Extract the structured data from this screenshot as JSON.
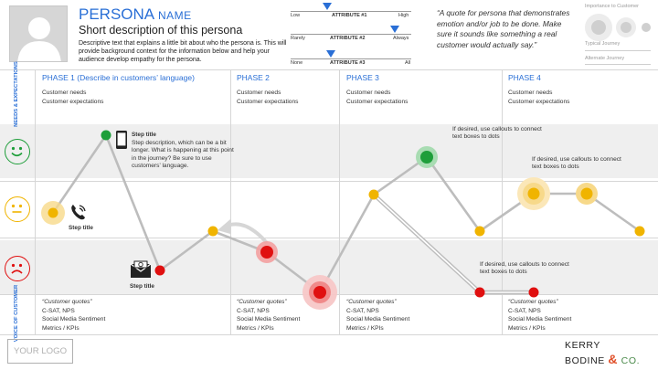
{
  "persona": {
    "title": "PERSONA",
    "title_suffix": "NAME",
    "subtitle": "Short description of this persona",
    "description": "Descriptive text that explains a little bit about who the persona is. This will provide background context for the information below and help your audience develop empathy for the persona."
  },
  "attributes": [
    {
      "name": "ATTRIBUTE #1",
      "low": "Low",
      "high": "High",
      "level": 0.3
    },
    {
      "name": "ATTRIBUTE #2",
      "low": "Rarely",
      "high": "Always",
      "level": 0.86
    },
    {
      "name": "ATTRIBUTE #3",
      "low": "None",
      "high": "All",
      "level": 0.33
    }
  ],
  "quote": "“A quote for persona that demonstrates emotion and/or job to be done. Make sure it sounds like something a real customer would actually say.”",
  "importance_legend": {
    "title": "Importance to Customer",
    "typical": "Typical Journey",
    "alternate": "Alternate Journey"
  },
  "row_labels": {
    "needs": "NEEDS & EXPECTATIONS",
    "voice": "VOICE OF CUSTOMER"
  },
  "phases": [
    {
      "label": "PHASE 1 (Describe in customers’ language)",
      "needs": [
        "Customer needs",
        "Customer expectations"
      ],
      "voc": [
        "“Customer quotes”",
        "C-SAT, NPS",
        "Social Media Sentiment",
        "Metrics / KPIs"
      ]
    },
    {
      "label": "PHASE 2",
      "needs": [
        "Customer needs",
        "Customer expectations"
      ],
      "voc": [
        "“Customer quotes”",
        "C-SAT, NPS",
        "Social Media Sentiment",
        "Metrics / KPIs"
      ]
    },
    {
      "label": "PHASE 3",
      "needs": [
        "Customer needs",
        "Customer expectations"
      ],
      "voc": [
        "“Customer quotes”",
        "C-SAT, NPS",
        "Social Media Sentiment",
        "Metrics / KPIs"
      ]
    },
    {
      "label": "PHASE 4",
      "needs": [
        "Customer needs",
        "Customer expectations"
      ],
      "voc": [
        "“Customer quotes”",
        "C-SAT, NPS",
        "Social Media Sentiment",
        "Metrics / KPIs"
      ]
    }
  ],
  "steps": {
    "phone": "Step title",
    "mobile_title": "Step title",
    "mobile_desc": "Step description, which can be a bit longer. What is happening at this point in the journey? Be sure to use customers’ language.",
    "mail": "Step title"
  },
  "callouts": [
    "If desired, use callouts to connect text boxes to dots",
    "If desired, use callouts to connect text boxes to dots",
    "If desired, use callouts to connect text boxes to dots"
  ],
  "colors": {
    "accent": "#2a6fd6",
    "positive": "#1e9e3a",
    "neutral": "#f0b400",
    "negative": "#e01010",
    "journey_line": "#bdbdbd"
  },
  "footer": {
    "logo_placeholder": "YOUR LOGO",
    "brand_line1": "KERRY",
    "brand_line2": "BODINE",
    "brand_amp": "&",
    "brand_co": "CO."
  }
}
